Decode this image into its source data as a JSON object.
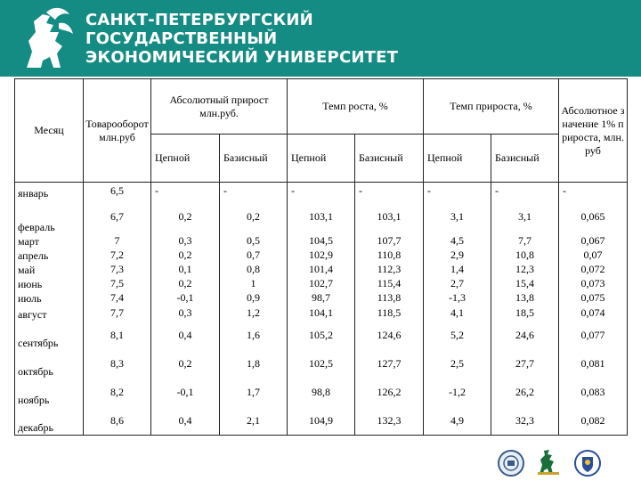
{
  "header": {
    "line1": "САНКТ-ПЕТЕРБУРГСКИЙ",
    "line2": "ГОСУДАРСТВЕННЫЙ",
    "line3": "ЭКОНОМИЧЕСКИЙ УНИВЕРСИТЕТ",
    "banner_color": "#148c84"
  },
  "table": {
    "headers": {
      "month": "Месяц",
      "turnover": "Товарооборот млн.руб",
      "abs_growth": "Абсолютный прирост млн.руб.",
      "growth_rate": "Темп роста, %",
      "increase_rate": "Темп прироста, %",
      "abs_value_1pct": "Абсолютное значение 1% прироста, млн. руб",
      "chain": "Цепной",
      "basic": "Базисный"
    },
    "rows": [
      {
        "month": "январь",
        "turnover": "6,5",
        "abs_chain": "-",
        "abs_basic": "-",
        "gr_chain": "-",
        "gr_basic": "-",
        "inc_chain": "-",
        "inc_basic": "-",
        "abs1": "-"
      },
      {
        "month": "февраль",
        "turnover": "6,7",
        "abs_chain": "0,2",
        "abs_basic": "0,2",
        "gr_chain": "103,1",
        "gr_basic": "103,1",
        "inc_chain": "3,1",
        "inc_basic": "3,1",
        "abs1": "0,065"
      },
      {
        "month": "март",
        "turnover": "7",
        "abs_chain": "0,3",
        "abs_basic": "0,5",
        "gr_chain": "104,5",
        "gr_basic": "107,7",
        "inc_chain": "4,5",
        "inc_basic": "7,7",
        "abs1": "0,067"
      },
      {
        "month": "апрель",
        "turnover": "7,2",
        "abs_chain": "0,2",
        "abs_basic": "0,7",
        "gr_chain": "102,9",
        "gr_basic": "110,8",
        "inc_chain": "2,9",
        "inc_basic": "10,8",
        "abs1": "0,07"
      },
      {
        "month": "май",
        "turnover": "7,3",
        "abs_chain": "0,1",
        "abs_basic": "0,8",
        "gr_chain": "101,4",
        "gr_basic": "112,3",
        "inc_chain": "1,4",
        "inc_basic": "12,3",
        "abs1": "0,072"
      },
      {
        "month": "июнь",
        "turnover": "7,5",
        "abs_chain": "0,2",
        "abs_basic": "1",
        "gr_chain": "102,7",
        "gr_basic": "115,4",
        "inc_chain": "2,7",
        "inc_basic": "15,4",
        "abs1": "0,073"
      },
      {
        "month": "июль",
        "turnover": "7,4",
        "abs_chain": "-0,1",
        "abs_basic": "0,9",
        "gr_chain": "98,7",
        "gr_basic": "113,8",
        "inc_chain": "-1,3",
        "inc_basic": "13,8",
        "abs1": "0,075"
      },
      {
        "month": "август",
        "turnover": "7,7",
        "abs_chain": "0,3",
        "abs_basic": "1,2",
        "gr_chain": "104,1",
        "gr_basic": "118,5",
        "inc_chain": "4,1",
        "inc_basic": "18,5",
        "abs1": "0,074"
      },
      {
        "month": "сентябрь",
        "turnover": "8,1",
        "abs_chain": "0,4",
        "abs_basic": "1,6",
        "gr_chain": "105,2",
        "gr_basic": "124,6",
        "inc_chain": "5,2",
        "inc_basic": "24,6",
        "abs1": "0,077"
      },
      {
        "month": "октябрь",
        "turnover": "8,3",
        "abs_chain": "0,2",
        "abs_basic": "1,8",
        "gr_chain": "102,5",
        "gr_basic": "127,7",
        "inc_chain": "2,5",
        "inc_basic": "27,7",
        "abs1": "0,081"
      },
      {
        "month": "ноябрь",
        "turnover": "8,2",
        "abs_chain": "-0,1",
        "abs_basic": "1,7",
        "gr_chain": "98,8",
        "gr_basic": "126,2",
        "inc_chain": "-1,2",
        "inc_basic": "26,2",
        "abs1": "0,083"
      },
      {
        "month": "декабрь",
        "turnover": "8,6",
        "abs_chain": "0,4",
        "abs_basic": "2,1",
        "gr_chain": "104,9",
        "gr_basic": "132,3",
        "inc_chain": "4,9",
        "inc_basic": "32,3",
        "abs1": "0,082"
      }
    ]
  },
  "footer_logos": [
    "university-seal-logo",
    "griffin-logo",
    "shield-emblem-logo"
  ]
}
